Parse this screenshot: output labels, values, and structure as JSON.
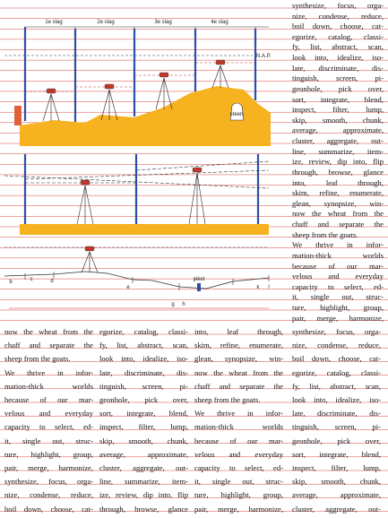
{
  "diagram": {
    "stages": [
      "1e slag",
      "2e slag",
      "3e slag",
      "4e slag"
    ],
    "nap": "N.A.P.",
    "stone": "steen",
    "stake": "piket",
    "points": [
      "b",
      "c",
      "d",
      "e",
      "g",
      "h",
      "k",
      "l"
    ]
  },
  "right_column": [
    "synthesize, focus, orga-",
    "nize, condense, reduce,",
    "boil down, choose, cat-",
    "egorize, catalog, classi-",
    "fy, list, abstract, scan,",
    "look into, idealize, iso-",
    "late, discriminate, dis-",
    "tinguish, screen, pi-",
    "geonhole, pick over,",
    "sort, integrate, blend,",
    "inspect, filter, lump,",
    "skip, smooth, chunk,",
    "average, approximate,",
    "cluster, aggregate, out-",
    "line, summarize, item-",
    "ize, review, dip into, flip",
    "through, browse, glance",
    "into, leaf through,",
    "skim, refine, enumerate,",
    "glean, synopsize, win-",
    "now the wheat from the",
    "chaff and separate the",
    "sheep from the goats.",
    "We thrive in infor-",
    "mation-thick worlds",
    "because of our mar-",
    "velous and everyday",
    "capacity to select, ed-",
    "it, single out, struc-",
    "ture, highlight, group,",
    "pair, merge, harmonize,"
  ],
  "columns": [
    [
      "now the wheat from the",
      "chaff and separate the",
      "sheep from the goats.",
      "We thrive in infor-",
      "mation-thick worlds",
      "because of our mar-",
      "velous and everyday",
      "capacity to select, ed-",
      "it, single out, struc-",
      "ture, highlight, group,",
      "pair, merge, harmonize,",
      "synthesize, focus, orga-",
      "nize, condense, reduce,",
      "boil down, choose, cat-"
    ],
    [
      "egorize, catalog, classi-",
      "fy, list, abstract, scan,",
      "look into, idealize, iso-",
      "late, discriminate, dis-",
      "tinguish, screen, pi-",
      "geonhole, pick over,",
      "sort, integrate, blend,",
      "inspect, filter, lump,",
      "skip, smooth, chunk,",
      "average, approximate,",
      "cluster, aggregate, out-",
      "line, summarize, item-",
      "ize, review, dip into, flip",
      "through, browse, glance"
    ],
    [
      "into, leaf through,",
      "skim, refine, enumerate,",
      "glean, synopsize, win-",
      "now the wheat from the",
      "chaff and separate the",
      "sheep from the goats.",
      "We thrive in infor-",
      "mation-thick worlds",
      "because of our mar-",
      "velous and everyday",
      "capacity to select, ed-",
      "it, single out, struc-",
      "ture, highlight, group,",
      "pair, merge, harmonize,"
    ],
    [
      "synthesize, focus, orga-",
      "nize, condense, reduce,",
      "boil down, choose, cat-",
      "egorize, catalog, classi-",
      "fy, list, abstract, scan,",
      "look into, idealize, iso-",
      "late, discriminate, dis-",
      "tinguish, screen, pi-",
      "geonhole, pick over,",
      "sort, integrate, blend,",
      "inspect, filter, lump,",
      "skip, smooth, chunk,",
      "average, approximate,",
      "cluster, aggregate, out-"
    ]
  ]
}
